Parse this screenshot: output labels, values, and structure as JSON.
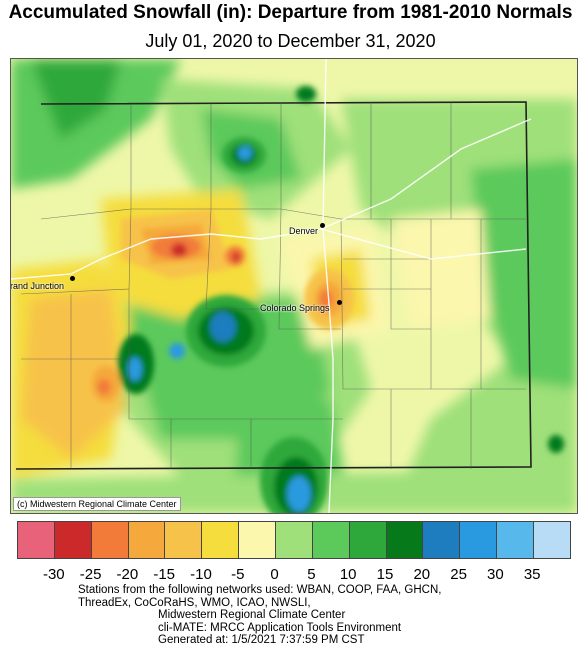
{
  "title": "Accumulated Snowfall (in): Departure from 1981-2010 Normals",
  "subtitle": "July 01, 2020 to December 31, 2020",
  "copyright": "(c) Midwestern Regional Climate Center",
  "cities": [
    {
      "name": "Denver"
    },
    {
      "name": "Grand Junction"
    },
    {
      "name": "Colorado Springs"
    }
  ],
  "legend": {
    "colors": [
      "#e8627a",
      "#cc2a2a",
      "#f27b3a",
      "#f5a83b",
      "#f7c24a",
      "#f5dd3e",
      "#fbf7ad",
      "#9fe07a",
      "#5cc95b",
      "#2ea83b",
      "#067a1a",
      "#1d7dbf",
      "#2a9ae0",
      "#57b8ec",
      "#b8dcf5"
    ],
    "ticks": [
      "-30",
      "-25",
      "-20",
      "-15",
      "-10",
      "-5",
      "0",
      "5",
      "10",
      "15",
      "20",
      "25",
      "30",
      "35"
    ]
  },
  "footer": {
    "line1": "Stations from the following networks used: WBAN, COOP, FAA, GHCN,",
    "line2": "ThreadEx, CoCoRaHS, WMO, ICAO, NWSLI,",
    "line3": "Midwestern Regional Climate Center",
    "line4": "cli-MATE: MRCC Application Tools Environment",
    "line5": "Generated at: 1/5/2021 7:37:59 PM CST"
  }
}
